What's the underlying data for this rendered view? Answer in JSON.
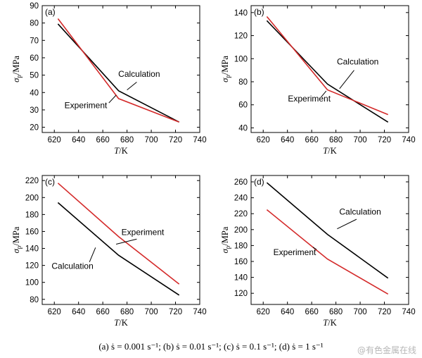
{
  "caption": "(a)  ṡ = 0.001 s⁻¹; (b)  ṡ = 0.01 s⁻¹; (c)  ṡ = 0.1 s⁻¹; (d)  ṡ = 1 s⁻¹",
  "watermark": "@有色金属在线",
  "colors": {
    "calculation": "#000000",
    "experiment": "#d42a2a"
  },
  "chart_data": [
    {
      "type": "line",
      "panel_label": "(a)",
      "xlabel": "T/K",
      "ylabel": "σp/MPa",
      "xlim": [
        610,
        740
      ],
      "ylim": [
        17,
        90
      ],
      "xticks": [
        620,
        640,
        660,
        680,
        700,
        720,
        740
      ],
      "yticks": [
        20,
        30,
        40,
        50,
        60,
        70,
        80,
        90
      ],
      "series": [
        {
          "name": "Calculation",
          "x": [
            623,
            673,
            723
          ],
          "y": [
            79.5,
            41,
            23
          ],
          "annotation_xy": [
            690,
            49
          ],
          "pointer_from": [
            688,
            46
          ],
          "pointer_to": [
            680,
            41.5
          ]
        },
        {
          "name": "Experiment",
          "x": [
            623,
            673,
            723
          ],
          "y": [
            82.5,
            36.5,
            23
          ],
          "annotation_xy": [
            646,
            31
          ],
          "pointer_from": [
            665,
            34
          ],
          "pointer_to": [
            671,
            38.5
          ]
        }
      ]
    },
    {
      "type": "line",
      "panel_label": "(b)",
      "xlabel": "T/K",
      "ylabel": "σp/MPa",
      "xlim": [
        610,
        740
      ],
      "ylim": [
        36,
        146
      ],
      "xticks": [
        620,
        640,
        660,
        680,
        700,
        720,
        740
      ],
      "yticks": [
        40,
        60,
        80,
        100,
        120,
        140
      ],
      "series": [
        {
          "name": "Calculation",
          "x": [
            623,
            673,
            723
          ],
          "y": [
            133,
            78,
            45
          ],
          "annotation_xy": [
            698,
            95
          ],
          "pointer_from": [
            695,
            90
          ],
          "pointer_to": [
            683,
            74
          ]
        },
        {
          "name": "Experiment",
          "x": [
            623,
            673,
            723
          ],
          "y": [
            136.5,
            73,
            51.5
          ],
          "annotation_xy": [
            658,
            63
          ],
          "pointer_from": [
            668,
            67
          ],
          "pointer_to": [
            672,
            72
          ]
        }
      ]
    },
    {
      "type": "line",
      "panel_label": "(c)",
      "xlabel": "T/K",
      "ylabel": "σp/MPa",
      "xlim": [
        610,
        740
      ],
      "ylim": [
        74,
        226
      ],
      "xticks": [
        620,
        640,
        660,
        680,
        700,
        720,
        740
      ],
      "yticks": [
        80,
        100,
        120,
        140,
        160,
        180,
        200,
        220
      ],
      "series": [
        {
          "name": "Calculation",
          "x": [
            623,
            673,
            723
          ],
          "y": [
            194,
            132,
            85
          ],
          "annotation_xy": [
            635,
            116
          ],
          "pointer_from": [
            649,
            124
          ],
          "pointer_to": [
            654,
            141
          ]
        },
        {
          "name": "Experiment",
          "x": [
            623,
            673,
            723
          ],
          "y": [
            217,
            154,
            98
          ],
          "annotation_xy": [
            693,
            156
          ],
          "pointer_from": [
            688,
            151
          ],
          "pointer_to": [
            671,
            145
          ]
        }
      ]
    },
    {
      "type": "line",
      "panel_label": "(d)",
      "xlabel": "T/K",
      "ylabel": "σp/MPa",
      "xlim": [
        610,
        740
      ],
      "ylim": [
        106,
        268
      ],
      "xticks": [
        620,
        640,
        660,
        680,
        700,
        720,
        740
      ],
      "yticks": [
        120,
        140,
        160,
        180,
        200,
        220,
        240,
        260
      ],
      "series": [
        {
          "name": "Calculation",
          "x": [
            623,
            673,
            723
          ],
          "y": [
            259,
            194,
            139
          ],
          "annotation_xy": [
            700,
            219
          ],
          "pointer_from": [
            697,
            213
          ],
          "pointer_to": [
            681,
            201
          ]
        },
        {
          "name": "Experiment",
          "x": [
            623,
            673,
            723
          ],
          "y": [
            225,
            163,
            119
          ],
          "annotation_xy": [
            646,
            168
          ],
          "pointer_from": [
            664,
            175
          ],
          "pointer_to": [
            661,
            178
          ]
        }
      ]
    }
  ]
}
